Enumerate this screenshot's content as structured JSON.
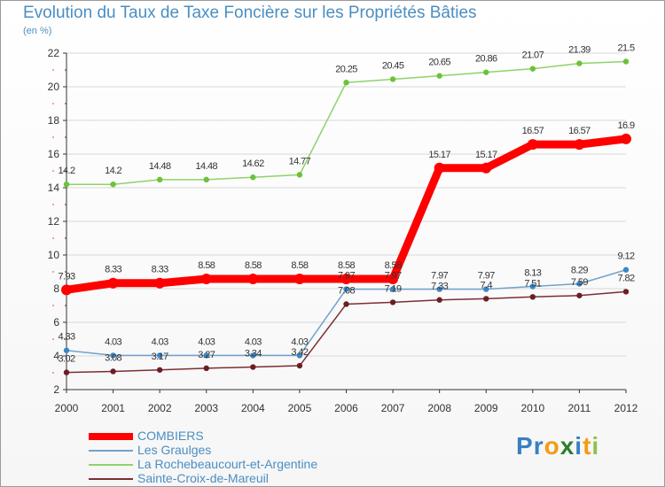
{
  "chart_data": {
    "type": "line",
    "title": "Evolution du Taux de Taxe Foncière sur les Propriétés Bâties",
    "ylabel": "(en %)",
    "xlabel": "",
    "x": [
      "2000",
      "2001",
      "2002",
      "2003",
      "2004",
      "2005",
      "2006",
      "2007",
      "2008",
      "2009",
      "2010",
      "2011",
      "2012"
    ],
    "ylim": [
      2,
      22
    ],
    "yticks": [
      2,
      4,
      6,
      8,
      10,
      12,
      14,
      16,
      18,
      20,
      22
    ],
    "grid": true,
    "legend_position": "bottom-left",
    "series": [
      {
        "name": "COMBIERS",
        "color": "#ff0000",
        "values": [
          7.93,
          8.33,
          8.33,
          8.58,
          8.58,
          8.58,
          8.58,
          8.58,
          15.17,
          15.17,
          16.57,
          16.57,
          16.9
        ],
        "labels": [
          "7.93",
          "8.33",
          "8.33",
          "8.58",
          "8.58",
          "8.58",
          "8.58",
          "8.58",
          "15.17",
          "15.17",
          "16.57",
          "16.57",
          "16.9"
        ]
      },
      {
        "name": "Les Graulges",
        "color": "#6fa3cf",
        "marker_color": "#3d86c6",
        "values": [
          4.33,
          4.03,
          4.03,
          4.03,
          4.03,
          4.03,
          7.97,
          7.97,
          7.97,
          7.97,
          8.13,
          8.29,
          9.12
        ],
        "labels": [
          "4.33",
          "4.03",
          "4.03",
          "4.03",
          "4.03",
          "4.03",
          "7.97",
          "7.97",
          "7.97",
          "7.97",
          "8.13",
          "8.29",
          "9.12"
        ]
      },
      {
        "name": "La Rochebeaucourt-et-Argentine",
        "color": "#8ed36a",
        "marker_color": "#6cc23a",
        "values": [
          14.2,
          14.2,
          14.48,
          14.48,
          14.62,
          14.77,
          20.25,
          20.45,
          20.65,
          20.86,
          21.07,
          21.39,
          21.5
        ],
        "labels": [
          "14.2",
          "14.2",
          "14.48",
          "14.48",
          "14.62",
          "14.77",
          "20.25",
          "20.45",
          "20.65",
          "20.86",
          "21.07",
          "21.39",
          "21.5"
        ]
      },
      {
        "name": "Sainte-Croix-de-Mareuil",
        "color": "#7a2f35",
        "marker_color": "#6b1e25",
        "values": [
          3.02,
          3.08,
          3.17,
          3.27,
          3.34,
          3.42,
          7.08,
          7.19,
          7.33,
          7.4,
          7.51,
          7.59,
          7.82
        ],
        "labels": [
          "3.02",
          "3.08",
          "3.17",
          "3.27",
          "3.34",
          "3.42",
          "7.08",
          "7.19",
          "7.33",
          "7.4",
          "7.51",
          "7.59",
          "7.82"
        ]
      }
    ]
  },
  "logo": {
    "letters": [
      "P",
      "r",
      "o",
      "x",
      "i",
      "t",
      "i"
    ],
    "colors": [
      "#3a7fc4",
      "#3a7fc4",
      "#f39c12",
      "#2e7d32",
      "#3a7fc4",
      "#f39c12",
      "#8bc34a"
    ]
  }
}
